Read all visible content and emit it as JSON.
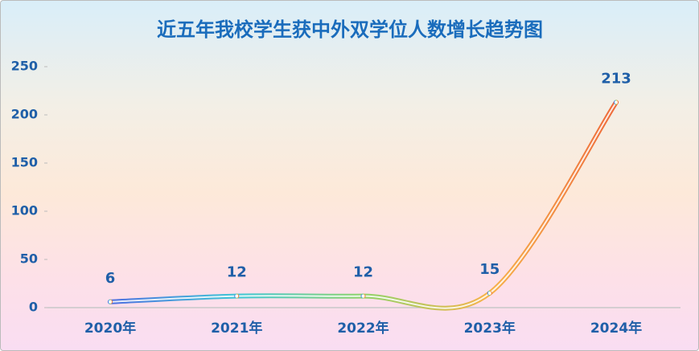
{
  "chart_data": {
    "type": "line",
    "title": "近五年我校学生获中外双学位人数增长趋势图",
    "categories": [
      "2020年",
      "2021年",
      "2022年",
      "2023年",
      "2024年"
    ],
    "values": [
      6,
      12,
      12,
      15,
      213
    ],
    "line_colors": [
      "#4f6fe0",
      "#3fc6d6",
      "#8fd36a",
      "#f7b24a",
      "#ee6a3a"
    ],
    "ylim": [
      0,
      250
    ],
    "yticks": [
      0,
      50,
      100,
      150,
      200,
      250
    ],
    "grid": false,
    "smooth": true
  }
}
